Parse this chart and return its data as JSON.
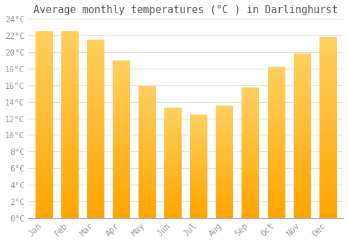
{
  "title": "Average monthly temperatures (°C ) in Darlinghurst",
  "months": [
    "Jan",
    "Feb",
    "Mar",
    "Apr",
    "May",
    "Jun",
    "Jul",
    "Aug",
    "Sep",
    "Oct",
    "Nov",
    "Dec"
  ],
  "values": [
    22.5,
    22.5,
    21.5,
    19.0,
    15.9,
    13.3,
    12.4,
    13.5,
    15.7,
    18.2,
    19.8,
    21.8
  ],
  "bar_color": "#FFA500",
  "bar_color_light": "#FFD060",
  "background_color": "#FFFFFF",
  "grid_color": "#DDDDDD",
  "text_color": "#999999",
  "ylim": [
    0,
    24
  ],
  "yticks": [
    0,
    2,
    4,
    6,
    8,
    10,
    12,
    14,
    16,
    18,
    20,
    22,
    24
  ],
  "title_fontsize": 10.5,
  "tick_fontsize": 8.5,
  "bar_width": 0.65
}
